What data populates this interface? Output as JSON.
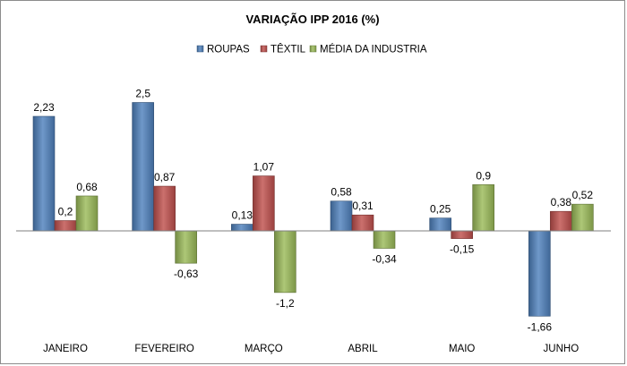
{
  "chart_data": {
    "type": "bar",
    "title": "VARIAÇÃO IPP 2016 (%)",
    "xlabel": "",
    "ylabel": "",
    "categories": [
      "JANEIRO",
      "FEVEREIRO",
      "MARÇO",
      "ABRIL",
      "MAIO",
      "JUNHO"
    ],
    "series": [
      {
        "name": "ROUPAS",
        "color": "#4f81bd",
        "values": [
          2.23,
          2.5,
          0.13,
          0.58,
          0.25,
          -1.66
        ],
        "labels": [
          "2,23",
          "2,5",
          "0,13",
          "0,58",
          "0,25",
          "-1,66"
        ]
      },
      {
        "name": "TÊXTIL",
        "color": "#c0504d",
        "values": [
          0.2,
          0.87,
          1.07,
          0.31,
          -0.15,
          0.38
        ],
        "labels": [
          "0,2",
          "0,87",
          "1,07",
          "0,31",
          "-0,15",
          "0,38"
        ]
      },
      {
        "name": "MÉDIA DA INDUSTRIA",
        "color": "#9bbb59",
        "values": [
          0.68,
          -0.63,
          -1.2,
          -0.34,
          0.9,
          0.52
        ],
        "labels": [
          "0,68",
          "-0,63",
          "-1,2",
          "-0,34",
          "0,9",
          "0,52"
        ]
      }
    ],
    "ylim": [
      -1.8,
      2.6
    ],
    "grid": false,
    "legend_position": "top"
  }
}
